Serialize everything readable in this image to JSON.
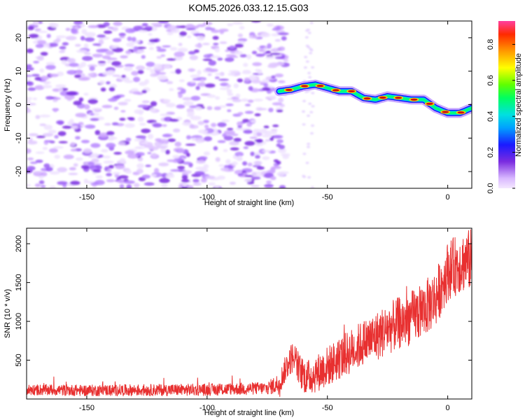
{
  "figure_title": "KOM5.2026.033.12.15.G03",
  "colors": {
    "snr_line": "#e83030",
    "ridge_core": "#cc1111",
    "noise": "#7a2be0",
    "axis": "#000000"
  },
  "chart_data": [
    {
      "type": "heatmap",
      "title": "KOM5.2026.033.12.15.G03",
      "xlabel": "Height of straight line (km)",
      "ylabel": "Frequency (Hz)",
      "xlim": [
        -175,
        10
      ],
      "ylim": [
        -25,
        25
      ],
      "xticks": [
        -150,
        -100,
        -50,
        0
      ],
      "yticks": [
        20,
        10,
        0,
        -10,
        -20
      ],
      "colorbar": {
        "label": "Normalized spectral amplitude",
        "range": [
          0,
          0.93
        ],
        "ticks": [
          0.0,
          0.2,
          0.4,
          0.6,
          0.8
        ],
        "colormap": "rainbow"
      },
      "noise_region_x": [
        -175,
        -70
      ],
      "ridge": {
        "description": "high-amplitude frequency ridge",
        "x": [
          -70,
          -65,
          -60,
          -55,
          -50,
          -45,
          -40,
          -35,
          -30,
          -25,
          -20,
          -15,
          -10,
          -5,
          0,
          5,
          10
        ],
        "y": [
          4,
          4.5,
          5.5,
          6,
          5,
          4,
          4,
          2,
          1.5,
          2.5,
          2,
          1.5,
          1.5,
          -1,
          -2.5,
          -2.5,
          -1
        ]
      }
    },
    {
      "type": "line",
      "xlabel": "Height of straight line (km)",
      "ylabel": "SNR (10 * v/v)",
      "xlim": [
        -175,
        10
      ],
      "ylim": [
        0,
        2200
      ],
      "xticks": [
        -150,
        -100,
        -50,
        0
      ],
      "yticks": [
        500,
        1000,
        1500,
        2000
      ],
      "trend": {
        "x": [
          -175,
          -150,
          -100,
          -75,
          -70,
          -68,
          -66,
          -64,
          -62,
          -60,
          -58,
          -55,
          -50,
          -45,
          -40,
          -35,
          -30,
          -25,
          -20,
          -15,
          -10,
          -5,
          0,
          5,
          10
        ],
        "y": [
          120,
          110,
          120,
          140,
          200,
          350,
          480,
          560,
          400,
          300,
          280,
          320,
          420,
          520,
          620,
          720,
          800,
          900,
          980,
          1050,
          1150,
          1300,
          1650,
          1750,
          1800
        ]
      },
      "noise_amplitude": {
        "x": [
          -175,
          -75,
          -65,
          -50,
          -30,
          -10,
          10
        ],
        "y": [
          70,
          80,
          200,
          260,
          320,
          360,
          400
        ]
      }
    }
  ]
}
